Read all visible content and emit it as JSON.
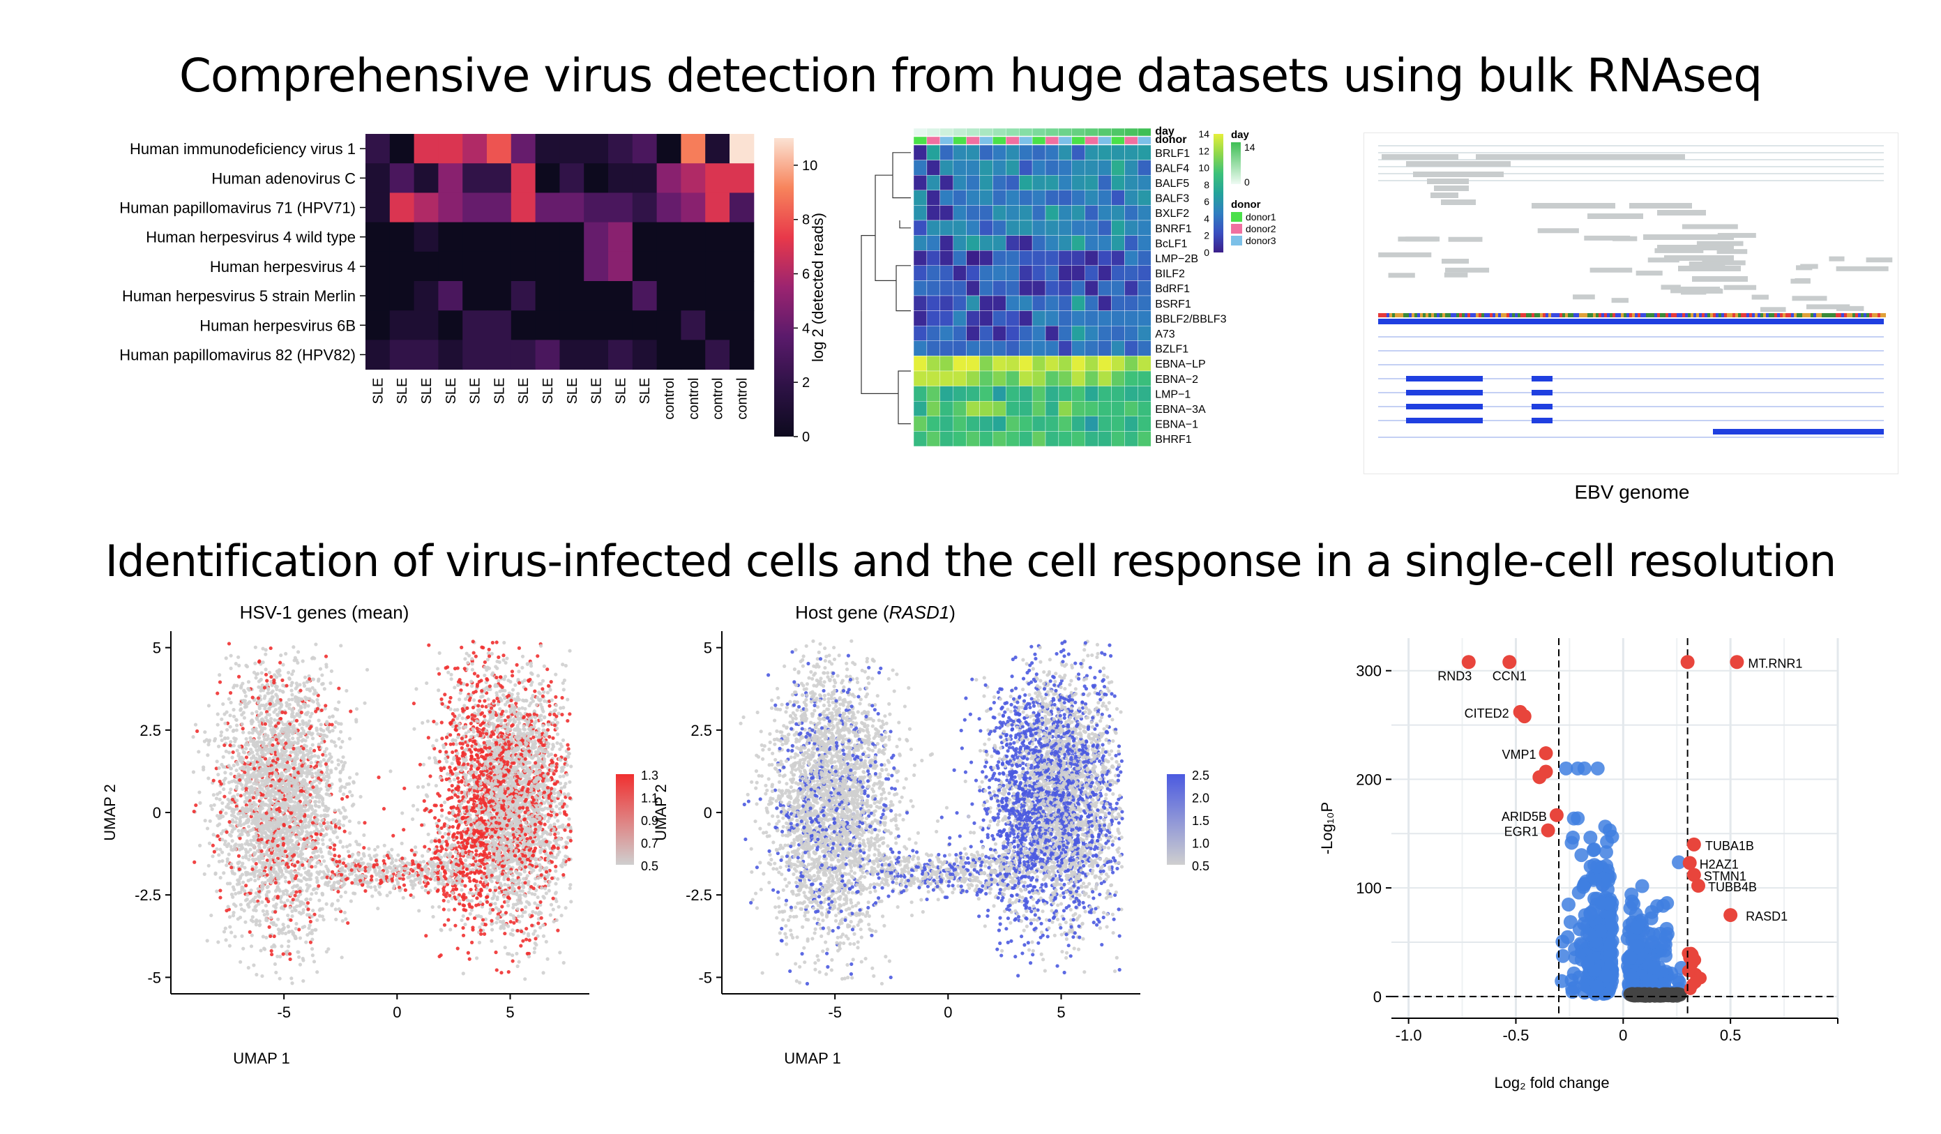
{
  "titles": {
    "top": "Comprehensive virus detection from huge datasets using bulk RNAseq",
    "bottom": "Identification of virus-infected cells and the cell response in a single-cell resolution"
  },
  "captions": {
    "ebv": "EBV genome"
  },
  "colors": {
    "magma_low": "#0d0a1e",
    "magma_mid": "#e8394a",
    "magma_high": "#fbe2d3",
    "umap_grey": "#cfcfcf",
    "umap_red": "#f03030",
    "umap_blue": "#4b5ae0",
    "volcano_red": "#e8453c",
    "volcano_blue": "#3f7fe0",
    "volcano_grey": "#444444",
    "donor1": "#4ae04a",
    "donor2": "#f070a0",
    "donor3": "#7cc0e8"
  },
  "chart_data": [
    {
      "id": "heatmap_viruses",
      "type": "heatmap",
      "rows": [
        "Human immunodeficiency virus 1",
        "Human adenovirus C",
        "Human papillomavirus 71 (HPV71)",
        "Human herpesvirus 4 wild type",
        "Human herpesvirus 4",
        "Human herpesvirus 5 strain Merlin",
        "Human herpesvirus 6B",
        "Human papillomavirus 82 (HPV82)"
      ],
      "columns": [
        "SLE",
        "SLE",
        "SLE",
        "SLE",
        "SLE",
        "SLE",
        "SLE",
        "SLE",
        "SLE",
        "SLE",
        "SLE",
        "SLE",
        "control",
        "control",
        "control",
        "control"
      ],
      "values": [
        [
          2,
          0,
          7,
          7,
          6,
          8,
          4,
          1,
          1,
          1,
          2,
          3,
          0,
          9,
          1,
          11
        ],
        [
          1,
          3,
          1,
          5,
          2,
          2,
          7,
          0,
          2,
          0,
          1,
          1,
          5,
          6,
          7,
          7
        ],
        [
          1,
          7,
          6,
          5,
          4,
          4,
          7,
          4,
          4,
          3,
          3,
          2,
          4,
          5,
          7,
          3
        ],
        [
          0,
          0,
          1,
          0,
          0,
          0,
          0,
          0,
          0,
          4,
          5,
          0,
          0,
          0,
          0,
          0
        ],
        [
          0,
          0,
          0,
          0,
          0,
          0,
          0,
          0,
          0,
          4,
          5,
          0,
          0,
          0,
          0,
          0
        ],
        [
          0,
          0,
          1,
          3,
          0,
          0,
          2,
          0,
          0,
          0,
          0,
          3,
          0,
          0,
          0,
          0
        ],
        [
          0,
          1,
          1,
          0,
          2,
          2,
          0,
          0,
          0,
          0,
          0,
          0,
          0,
          2,
          0,
          0
        ],
        [
          1,
          2,
          2,
          1,
          2,
          2,
          2,
          3,
          1,
          1,
          2,
          1,
          0,
          0,
          2,
          0
        ]
      ],
      "colorbar": {
        "label": "log 2 (detected reads)",
        "ticks": [
          0,
          2,
          4,
          6,
          8,
          10
        ],
        "range": [
          0,
          11
        ]
      }
    },
    {
      "id": "heatmap_ebv",
      "type": "heatmap",
      "rows": [
        "BRLF1",
        "BALF4",
        "BALF5",
        "BALF3",
        "BXLF2",
        "BNRF1",
        "BcLF1",
        "LMP−2B",
        "BILF2",
        "BdRF1",
        "BSRF1",
        "BBLF2/BBLF3",
        "A73",
        "BZLF1",
        "EBNA−LP",
        "EBNA−2",
        "LMP−1",
        "EBNA−3A",
        "EBNA−1",
        "BHRF1"
      ],
      "annotation_rows": [
        "day",
        "donor"
      ],
      "colorbar": {
        "ticks": [
          0,
          2,
          4,
          6,
          8,
          10,
          12,
          14
        ],
        "range": [
          0,
          14
        ]
      },
      "legend": {
        "day_title": "day",
        "day_ticks": [
          "14",
          "0"
        ],
        "donor_title": "donor",
        "donor_levels": [
          "donor1",
          "donor2",
          "donor3"
        ]
      }
    },
    {
      "id": "umap_hsv",
      "type": "scatter",
      "title": "HSV-1 genes (mean)",
      "xlabel": "UMAP 1",
      "ylabel": "UMAP 2",
      "xlim": [
        -10,
        8.5
      ],
      "ylim": [
        -5.5,
        5.5
      ],
      "xticks": [
        "-5",
        "0",
        "5"
      ],
      "yticks": [
        "5",
        "2.5",
        "0",
        "-2.5",
        "-5"
      ],
      "legend_ticks": [
        "1.3",
        "1.1",
        "0.9",
        "0.7",
        "0.5"
      ]
    },
    {
      "id": "umap_rasd1",
      "type": "scatter",
      "title": "Host gene (",
      "title_gene": "RASD1",
      "title_end": ")",
      "xlabel": "UMAP 1",
      "ylabel": "UMAP 2",
      "xlim": [
        -10,
        8.5
      ],
      "ylim": [
        -5.5,
        5.5
      ],
      "xticks": [
        "-5",
        "0",
        "5"
      ],
      "yticks": [
        "5",
        "2.5",
        "0",
        "-2.5",
        "-5"
      ],
      "legend_ticks": [
        "2.5",
        "2.0",
        "1.5",
        "1.0",
        "0.5"
      ]
    },
    {
      "id": "volcano",
      "type": "scatter",
      "xlabel": "Log₂ fold change",
      "ylabel": "-Log₁₀P",
      "xlim": [
        -1.08,
        1.0
      ],
      "ylim": [
        -20,
        330
      ],
      "xticks": [
        "-1.0",
        "-0.5",
        "0",
        "0.5"
      ],
      "yticks": [
        "300",
        "200",
        "100",
        "0"
      ],
      "thresholds": {
        "x": [
          -0.3,
          0.3
        ],
        "y": 0
      },
      "labeled_points": [
        {
          "label": "RND3",
          "x": -0.72,
          "y": 308
        },
        {
          "label": "CCN1",
          "x": -0.53,
          "y": 308
        },
        {
          "label": "CITED2",
          "x": -0.48,
          "y": 262
        },
        {
          "label": "VMP1",
          "x": -0.36,
          "y": 224
        },
        {
          "label": "ARID5B",
          "x": -0.31,
          "y": 167
        },
        {
          "label": "EGR1",
          "x": -0.35,
          "y": 153
        },
        {
          "label": "MT.RNR1",
          "x": 0.53,
          "y": 308
        },
        {
          "label": "TUBA1B",
          "x": 0.33,
          "y": 140
        },
        {
          "label": "H2AZ1",
          "x": 0.31,
          "y": 123
        },
        {
          "label": "STMN1",
          "x": 0.33,
          "y": 112
        },
        {
          "label": "TUBB4B",
          "x": 0.35,
          "y": 102
        },
        {
          "label": "RASD1",
          "x": 0.5,
          "y": 75
        }
      ]
    }
  ]
}
